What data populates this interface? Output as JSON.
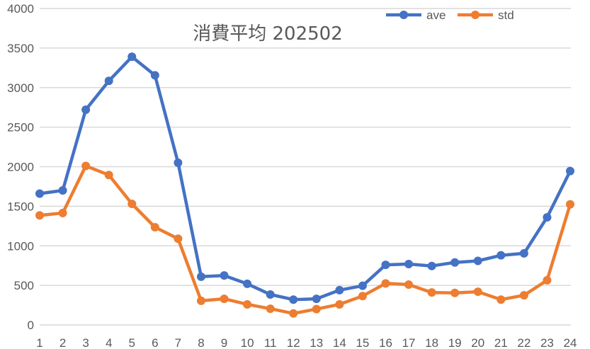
{
  "chart_data": {
    "type": "line",
    "title": "消費平均 202502",
    "xlabel": "",
    "ylabel": "",
    "categories": [
      "1",
      "2",
      "3",
      "4",
      "5",
      "6",
      "7",
      "8",
      "9",
      "10",
      "11",
      "12",
      "13",
      "14",
      "15",
      "16",
      "17",
      "18",
      "19",
      "20",
      "21",
      "22",
      "23",
      "24"
    ],
    "series": [
      {
        "name": "ave",
        "color": "#4472C4",
        "values": [
          1660,
          1700,
          2720,
          3085,
          3390,
          3155,
          2050,
          610,
          625,
          520,
          385,
          320,
          330,
          440,
          495,
          760,
          770,
          745,
          790,
          810,
          880,
          905,
          1360,
          1945
        ]
      },
      {
        "name": "std",
        "color": "#ED7D31",
        "values": [
          1385,
          1415,
          2010,
          1895,
          1530,
          1235,
          1090,
          305,
          330,
          260,
          205,
          145,
          200,
          260,
          365,
          525,
          510,
          410,
          405,
          420,
          320,
          375,
          565,
          1525
        ]
      }
    ],
    "ylim": [
      0,
      4000
    ],
    "yticks": [
      0,
      500,
      1000,
      1500,
      2000,
      2500,
      3000,
      3500,
      4000
    ],
    "grid": true,
    "legend_position": "top-right"
  },
  "colors": {
    "gridline": "#D9D9D9",
    "text": "#595959",
    "background": "#FFFFFF"
  }
}
